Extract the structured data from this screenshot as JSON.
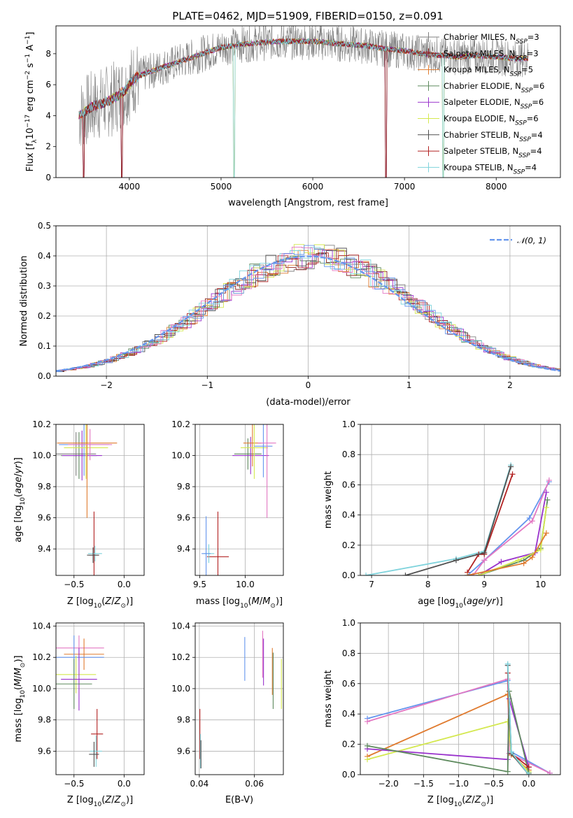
{
  "figure": {
    "title": "PLATE=0462, MJD=51909, FIBERID=0150, z=0.091"
  },
  "colors": {
    "grid": "#b0b0b0",
    "gauss": "#6495ED"
  },
  "chart_data": [
    {
      "id": "spectrum",
      "type": "line",
      "xlabel": "wavelength [Angstrom, rest frame]",
      "ylabel": "Flux [f_λ 10^-17 erg cm^-2 s^-1 A^-1]",
      "xlim": [
        3200,
        8700
      ],
      "ylim": [
        0,
        9.8
      ],
      "xticks": [
        4000,
        5000,
        6000,
        7000,
        8000
      ],
      "yticks": [
        0,
        2,
        4,
        6,
        8
      ],
      "legend_position": "upper right",
      "series": [
        {
          "name": "Chabrier MILES",
          "nssp": "3",
          "color": "#808080"
        },
        {
          "name": "Salpeter MILES",
          "nssp": "3",
          "color": "#8B2323"
        },
        {
          "name": "Kroupa MILES",
          "nssp": "5",
          "color": "#E07B2F"
        },
        {
          "name": "Chabrier ELODIE",
          "nssp": "6",
          "color": "#5E8A5E"
        },
        {
          "name": "Salpeter ELODIE",
          "nssp": "6",
          "color": "#9932CC"
        },
        {
          "name": "Kroupa ELODIE",
          "nssp": "6",
          "color": "#D4E84F"
        },
        {
          "name": "Chabrier STELIB",
          "nssp": "4",
          "color": "#505050"
        },
        {
          "name": "Salpeter STELIB",
          "nssp": "4",
          "color": "#B22222"
        },
        {
          "name": "Kroupa STELIB",
          "nssp": "4",
          "color": "#7FD3DC"
        }
      ],
      "continuum": [
        [
          3450,
          4.0
        ],
        [
          3600,
          4.6
        ],
        [
          3800,
          5.0
        ],
        [
          3950,
          5.6
        ],
        [
          4050,
          6.4
        ],
        [
          4200,
          6.8
        ],
        [
          4400,
          7.2
        ],
        [
          4600,
          7.6
        ],
        [
          4800,
          8.0
        ],
        [
          5000,
          8.4
        ],
        [
          5200,
          8.6
        ],
        [
          5400,
          8.7
        ],
        [
          5600,
          8.8
        ],
        [
          5800,
          8.8
        ],
        [
          6000,
          8.8
        ],
        [
          6200,
          8.7
        ],
        [
          6400,
          8.6
        ],
        [
          6600,
          8.5
        ],
        [
          6800,
          8.3
        ],
        [
          7000,
          8.2
        ],
        [
          7200,
          8.0
        ],
        [
          7400,
          7.9
        ],
        [
          7600,
          7.8
        ],
        [
          7800,
          7.9
        ],
        [
          8000,
          7.8
        ],
        [
          8200,
          7.7
        ],
        [
          8350,
          7.7
        ]
      ],
      "drops": [
        3500,
        3920,
        5140,
        6800,
        7420
      ]
    },
    {
      "id": "residuals",
      "type": "histogram",
      "xlabel": "(data-model)/error",
      "ylabel": "Normed distribution",
      "xlim": [
        -2.5,
        2.5
      ],
      "ylim": [
        0,
        0.5
      ],
      "xticks": [
        -2,
        -1,
        0,
        1,
        2
      ],
      "yticks": [
        0.0,
        0.1,
        0.2,
        0.3,
        0.4,
        0.5
      ],
      "bin_width": 0.1,
      "legend": [
        {
          "label": "𝒩(0, 1)"
        }
      ]
    },
    {
      "id": "age_vs_Z",
      "type": "errorbar",
      "xlabel": "Z [log10(Z/Z⊙)]",
      "ylabel": "age [log10(age/yr)]",
      "xlim": [
        -0.68,
        0.2
      ],
      "ylim": [
        9.23,
        10.2
      ],
      "xticks": [
        -0.5,
        0.0
      ],
      "yticks": [
        9.4,
        9.6,
        9.8,
        10.0,
        10.2
      ],
      "points": [
        {
          "x": -0.48,
          "xerr": 0.2,
          "y": 10.01,
          "yerr": 0.14,
          "color": "#808080"
        },
        {
          "x": -0.45,
          "xerr": 0.18,
          "y": 10.0,
          "yerr": 0.15,
          "color": "#5E8A5E"
        },
        {
          "x": -0.42,
          "xerr": 0.2,
          "y": 10.0,
          "yerr": 0.16,
          "color": "#9932CC"
        },
        {
          "x": -0.4,
          "xerr": 0.25,
          "y": 10.07,
          "yerr": 0.2,
          "color": "#6495ED"
        },
        {
          "x": -0.38,
          "xerr": 0.22,
          "y": 10.05,
          "yerr": 0.2,
          "color": "#D4E84F"
        },
        {
          "x": -0.37,
          "xerr": 0.3,
          "y": 10.08,
          "yerr": 0.48,
          "color": "#E07B2F"
        },
        {
          "x": -0.34,
          "xerr": 0.22,
          "y": 10.07,
          "yerr": 0.1,
          "color": "#E377C2"
        },
        {
          "x": -0.3,
          "xerr": 0.05,
          "y": 9.36,
          "yerr": 0.28,
          "color": "#B22222"
        },
        {
          "x": -0.29,
          "xerr": 0.07,
          "y": 9.37,
          "yerr": 0.05,
          "color": "#7FD3DC"
        },
        {
          "x": -0.31,
          "xerr": 0.06,
          "y": 9.36,
          "yerr": 0.05,
          "color": "#505050"
        }
      ]
    },
    {
      "id": "age_vs_mass",
      "type": "errorbar",
      "xlabel": "mass [log10(M/M⊙)]",
      "ylabel": "",
      "xlim": [
        9.45,
        10.42
      ],
      "ylim": [
        9.23,
        10.2
      ],
      "xticks": [
        9.5,
        10.0
      ],
      "yticks": [
        9.4,
        9.6,
        9.8,
        10.0,
        10.2
      ],
      "points": [
        {
          "x": 10.03,
          "xerr": 0.15,
          "y": 10.01,
          "yerr": 0.1,
          "color": "#5E8A5E"
        },
        {
          "x": 10.06,
          "xerr": 0.2,
          "y": 10.0,
          "yerr": 0.12,
          "color": "#9932CC"
        },
        {
          "x": 10.08,
          "xerr": 0.1,
          "y": 10.08,
          "yerr": 0.15,
          "color": "#E07B2F"
        },
        {
          "x": 10.1,
          "xerr": 0.15,
          "y": 10.05,
          "yerr": 0.2,
          "color": "#D4E84F"
        },
        {
          "x": 10.2,
          "xerr": 0.1,
          "y": 10.06,
          "yerr": 0.2,
          "color": "#6495ED"
        },
        {
          "x": 10.24,
          "xerr": 0.1,
          "y": 10.08,
          "yerr": 0.48,
          "color": "#E377C2"
        },
        {
          "x": 9.7,
          "xerr": 0.12,
          "y": 9.35,
          "yerr": 0.29,
          "color": "#B22222"
        },
        {
          "x": 9.6,
          "xerr": 0.06,
          "y": 9.37,
          "yerr": 0.06,
          "color": "#7FD3DC"
        },
        {
          "x": 9.57,
          "xerr": 0.05,
          "y": 9.37,
          "yerr": 0.24,
          "color": "#6495ED"
        }
      ]
    },
    {
      "id": "mw_vs_age",
      "type": "line",
      "xlabel": "age [log10(age/yr)]",
      "ylabel": "mass weight",
      "xlim": [
        6.8,
        10.35
      ],
      "ylim": [
        0,
        1.0
      ],
      "xticks": [
        7,
        8,
        9,
        10
      ],
      "yticks": [
        0.0,
        0.2,
        0.4,
        0.6,
        0.8,
        1.0
      ],
      "series": [
        {
          "color": "#7FD3DC",
          "points": [
            [
              6.9,
              0
            ],
            [
              8.5,
              0.11
            ],
            [
              9.0,
              0.16
            ],
            [
              9.47,
              0.73
            ]
          ]
        },
        {
          "color": "#B22222",
          "points": [
            [
              8.7,
              0.02
            ],
            [
              8.9,
              0.14
            ],
            [
              9.0,
              0.14
            ],
            [
              9.5,
              0.67
            ]
          ]
        },
        {
          "color": "#505050",
          "points": [
            [
              7.6,
              0
            ],
            [
              8.5,
              0.1
            ],
            [
              9.0,
              0.15
            ],
            [
              9.47,
              0.72
            ]
          ]
        },
        {
          "color": "#6495ED",
          "points": [
            [
              8.7,
              0
            ],
            [
              9.0,
              0.1
            ],
            [
              9.8,
              0.38
            ],
            [
              10.15,
              0.62
            ]
          ]
        },
        {
          "color": "#E377C2",
          "points": [
            [
              8.8,
              0
            ],
            [
              9.0,
              0.1
            ],
            [
              9.85,
              0.36
            ],
            [
              10.15,
              0.63
            ]
          ]
        },
        {
          "color": "#9932CC",
          "points": [
            [
              8.9,
              0
            ],
            [
              9.3,
              0.09
            ],
            [
              9.9,
              0.15
            ],
            [
              10.1,
              0.55
            ]
          ]
        },
        {
          "color": "#5E8A5E",
          "points": [
            [
              8.9,
              0
            ],
            [
              9.7,
              0.1
            ],
            [
              10.0,
              0.18
            ],
            [
              10.12,
              0.5
            ]
          ]
        },
        {
          "color": "#D4E84F",
          "points": [
            [
              8.9,
              0
            ],
            [
              9.6,
              0.1
            ],
            [
              10.0,
              0.17
            ],
            [
              10.1,
              0.45
            ]
          ]
        },
        {
          "color": "#E07B2F",
          "points": [
            [
              8.7,
              0
            ],
            [
              9.7,
              0.08
            ],
            [
              9.85,
              0.12
            ],
            [
              10.1,
              0.28
            ]
          ]
        }
      ]
    },
    {
      "id": "mass_vs_Z",
      "type": "errorbar",
      "xlabel": "Z [log10(Z/Z⊙)]",
      "ylabel": "mass [log10(M/M⊙)]",
      "xlim": [
        -0.68,
        0.2
      ],
      "ylim": [
        9.45,
        10.42
      ],
      "xticks": [
        -0.5,
        0.0
      ],
      "yticks": [
        9.6,
        9.8,
        10.0,
        10.2,
        10.4
      ],
      "points": [
        {
          "x": -0.45,
          "xerr": 0.25,
          "y": 10.26,
          "yerr": 0.08,
          "color": "#E377C2"
        },
        {
          "x": -0.4,
          "xerr": 0.2,
          "y": 10.22,
          "yerr": 0.1,
          "color": "#E07B2F"
        },
        {
          "x": -0.5,
          "xerr": 0.3,
          "y": 10.2,
          "yerr": 0.14,
          "color": "#6495ED"
        },
        {
          "x": -0.48,
          "xerr": 0.2,
          "y": 10.09,
          "yerr": 0.12,
          "color": "#D4E84F"
        },
        {
          "x": -0.45,
          "xerr": 0.18,
          "y": 10.06,
          "yerr": 0.2,
          "color": "#9932CC"
        },
        {
          "x": -0.5,
          "xerr": 0.18,
          "y": 10.03,
          "yerr": 0.16,
          "color": "#5E8A5E"
        },
        {
          "x": -0.27,
          "xerr": 0.06,
          "y": 9.71,
          "yerr": 0.16,
          "color": "#B22222"
        },
        {
          "x": -0.28,
          "xerr": 0.06,
          "y": 9.6,
          "yerr": 0.1,
          "color": "#7FD3DC"
        },
        {
          "x": -0.3,
          "xerr": 0.05,
          "y": 9.58,
          "yerr": 0.08,
          "color": "#505050"
        }
      ]
    },
    {
      "id": "mass_vs_EBV",
      "type": "errorbar",
      "xlabel": "E(B-V)",
      "ylabel": "",
      "xlim": [
        0.0385,
        0.0705
      ],
      "ylim": [
        9.45,
        10.42
      ],
      "xticks": [
        0.04,
        0.06
      ],
      "yticks": [
        9.6,
        9.8,
        10.0,
        10.2,
        10.4
      ],
      "points": [
        {
          "x": 0.0565,
          "y": 10.19,
          "yerr": 0.14,
          "color": "#6495ED"
        },
        {
          "x": 0.063,
          "y": 10.22,
          "yerr": 0.15,
          "color": "#E377C2"
        },
        {
          "x": 0.0633,
          "y": 10.17,
          "yerr": 0.15,
          "color": "#9932CC"
        },
        {
          "x": 0.0665,
          "y": 10.11,
          "yerr": 0.15,
          "color": "#E07B2F"
        },
        {
          "x": 0.0668,
          "y": 10.05,
          "yerr": 0.18,
          "color": "#5E8A5E"
        },
        {
          "x": 0.0698,
          "y": 10.03,
          "yerr": 0.16,
          "color": "#D4E84F"
        },
        {
          "x": 0.0402,
          "y": 9.71,
          "yerr": 0.16,
          "color": "#B22222"
        },
        {
          "x": 0.0404,
          "y": 9.6,
          "yerr": 0.11,
          "color": "#7FD3DC"
        },
        {
          "x": 0.0406,
          "y": 9.58,
          "yerr": 0.09,
          "color": "#505050"
        }
      ]
    },
    {
      "id": "mw_vs_Z",
      "type": "line",
      "xlabel": "Z [log10(Z/Z⊙)]",
      "ylabel": "mass weight",
      "xlim": [
        -2.4,
        0.45
      ],
      "ylim": [
        0,
        1.0
      ],
      "xticks": [
        -2.0,
        -1.5,
        -1.0,
        -0.5,
        0.0
      ],
      "yticks": [
        0.0,
        0.2,
        0.4,
        0.6,
        0.8,
        1.0
      ],
      "series": [
        {
          "color": "#6495ED",
          "points": [
            [
              -2.3,
              0.37
            ],
            [
              -0.3,
              0.62
            ],
            [
              -0.25,
              0.15
            ],
            [
              0.3,
              0.01
            ]
          ]
        },
        {
          "color": "#E377C2",
          "points": [
            [
              -2.3,
              0.35
            ],
            [
              -0.3,
              0.63
            ],
            [
              -0.28,
              0.14
            ],
            [
              0.3,
              0.01
            ]
          ]
        },
        {
          "color": "#E07B2F",
          "points": [
            [
              -2.3,
              0.12
            ],
            [
              -0.3,
              0.53
            ],
            [
              -0.25,
              0.13
            ],
            [
              0.0,
              0.03
            ]
          ]
        },
        {
          "color": "#D4E84F",
          "points": [
            [
              -2.3,
              0.1
            ],
            [
              -0.3,
              0.35
            ],
            [
              -0.25,
              0.14
            ],
            [
              0.0,
              0.02
            ]
          ]
        },
        {
          "color": "#9932CC",
          "points": [
            [
              -2.3,
              0.17
            ],
            [
              -0.3,
              0.1
            ],
            [
              -0.28,
              0.5
            ],
            [
              0.0,
              0.05
            ]
          ]
        },
        {
          "color": "#5E8A5E",
          "points": [
            [
              -2.3,
              0.19
            ],
            [
              -0.3,
              0.02
            ],
            [
              -0.28,
              0.55
            ],
            [
              0.0,
              0.01
            ]
          ]
        },
        {
          "color": "#B22222",
          "points": [
            [
              -0.3,
              0.67
            ],
            [
              -0.25,
              0.14
            ],
            [
              0.0,
              0.05
            ]
          ]
        },
        {
          "color": "#505050",
          "points": [
            [
              -0.3,
              0.72
            ],
            [
              -0.25,
              0.14
            ],
            [
              0.0,
              0.0
            ]
          ]
        },
        {
          "color": "#7FD3DC",
          "points": [
            [
              -0.3,
              0.73
            ],
            [
              -0.25,
              0.15
            ],
            [
              0.0,
              0.0
            ]
          ]
        }
      ]
    }
  ]
}
